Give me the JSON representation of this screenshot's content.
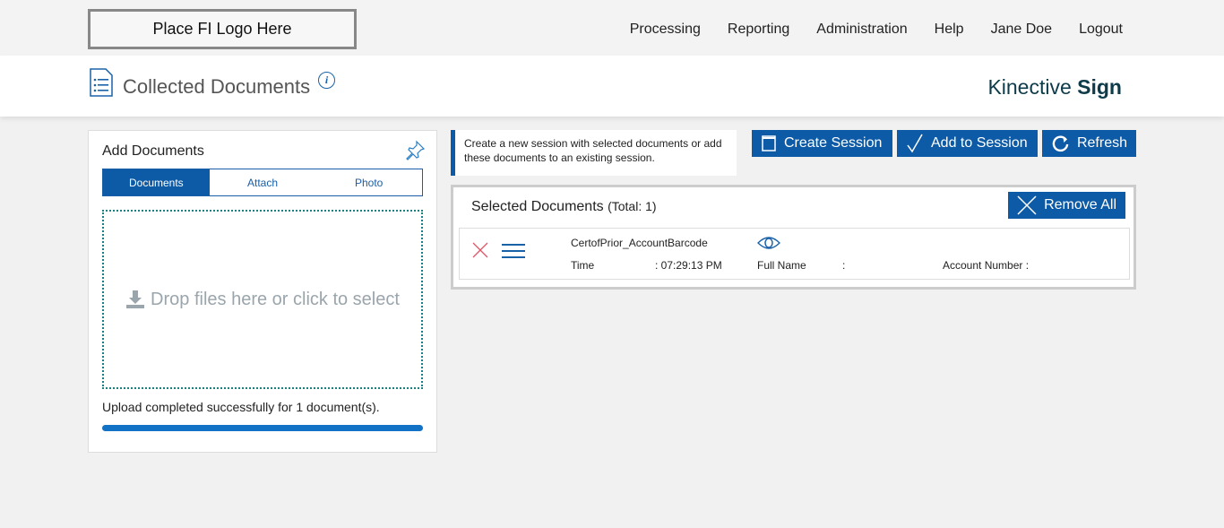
{
  "topbar": {
    "logo": "Place FI Logo Here",
    "nav": [
      "Processing",
      "Reporting",
      "Administration",
      "Help",
      "Jane Doe",
      "Logout"
    ]
  },
  "header": {
    "title": "Collected Documents",
    "brand_light": "Kinective",
    "brand_bold": "Sign"
  },
  "add_panel": {
    "title": "Add Documents",
    "tabs": [
      "Documents",
      "Attach",
      "Photo"
    ],
    "active_tab": "Documents",
    "drop_text": "Drop files here or click to select",
    "status": "Upload completed successfully for 1 document(s).",
    "progress": 100
  },
  "hint": "Create a new session with selected documents or add these documents to an existing session.",
  "buttons": {
    "create": "Create Session",
    "add": "Add to Session",
    "refresh": "Refresh",
    "remove_all": "Remove All"
  },
  "selected": {
    "title": "Selected Documents",
    "total": "(Total: 1)",
    "items": [
      {
        "name": "CertofPrior_AccountBarcode",
        "time_label": "Time",
        "time": ": 07:29:13 PM",
        "fullname_label": "Full Name",
        "fullname": ":",
        "account_label": "Account Number :"
      }
    ]
  },
  "colors": {
    "primary": "#0d5ba6",
    "progress": "#1272c5",
    "remove": "#e0566a"
  }
}
